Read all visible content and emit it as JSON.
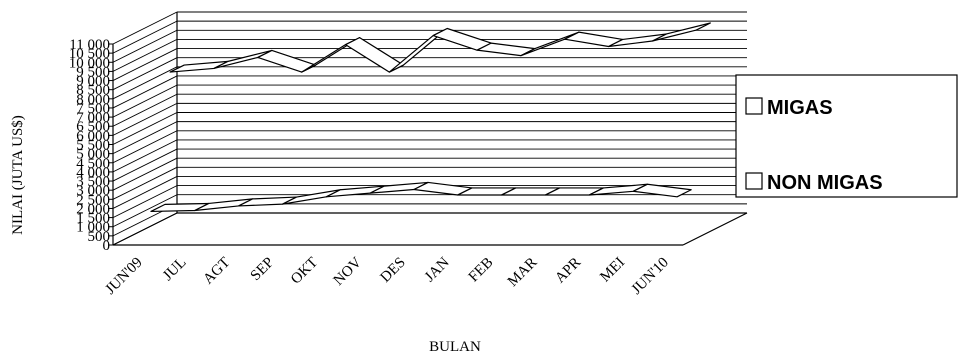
{
  "chart_data": {
    "type": "line",
    "style": "3d-ribbon",
    "xlabel": "BULAN",
    "ylabel": "NILAI (JUTA US$)",
    "categories": [
      "JUN'09",
      "JUL",
      "AGT",
      "SEP",
      "OKT",
      "NOV",
      "DES",
      "JAN",
      "FEB",
      "MAR",
      "APR",
      "MEI",
      "JUN'10"
    ],
    "y_ticks": [
      "0",
      "500",
      "1 000",
      "1 500",
      "2 000",
      "2 500",
      "3 000",
      "3 500",
      "4 000",
      "4 500",
      "5 000",
      "5 500",
      "6 000",
      "6 500",
      "7 000",
      "7 500",
      "8 000",
      "8 500",
      "9 000",
      "9 500",
      "10 000",
      "10 500",
      "11 000"
    ],
    "ylim": [
      0,
      11000
    ],
    "grid": true,
    "legend_position": "right",
    "series": [
      {
        "name": "MIGAS",
        "values": [
          1400,
          1450,
          1700,
          1800,
          2200,
          2400,
          2600,
          2300,
          2300,
          2300,
          2300,
          2500,
          2200
        ]
      },
      {
        "name": "NON MIGAS",
        "values": [
          8500,
          8700,
          9300,
          8500,
          10000,
          8500,
          10500,
          9700,
          9400,
          10300,
          9900,
          10200,
          10800
        ]
      }
    ]
  }
}
